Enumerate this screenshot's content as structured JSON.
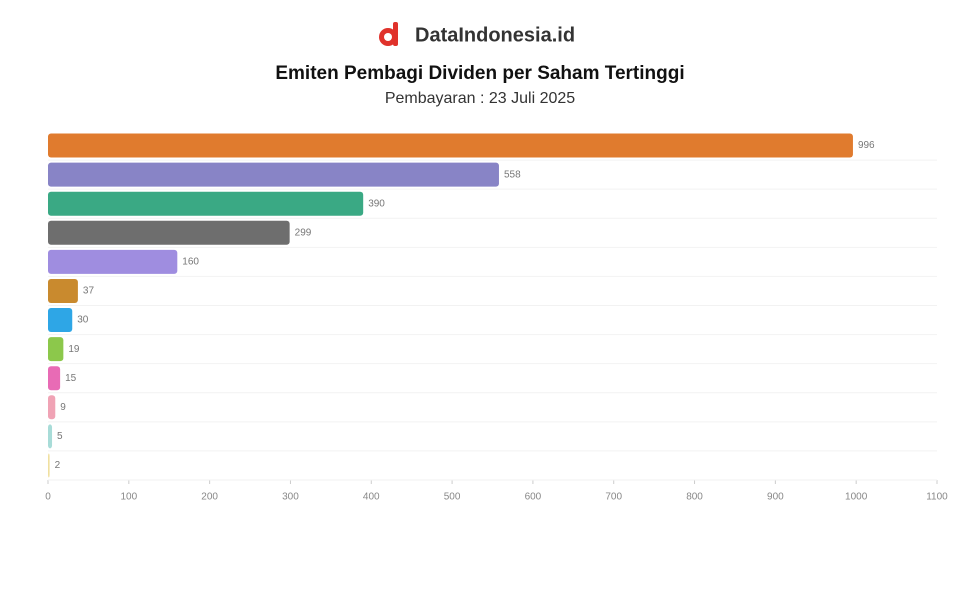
{
  "brand": "DataIndonesia.id",
  "chart_data": {
    "type": "hbar",
    "title": "Emiten Pembagi Dividen per Saham Tertinggi",
    "subtitle": "Pembayaran : 23 Juli 2025",
    "categories": [
      null,
      null,
      null,
      null,
      null,
      null,
      null,
      null,
      null,
      null,
      null,
      null
    ],
    "values": [
      996,
      558,
      390,
      299,
      160,
      37,
      30,
      19,
      15,
      9,
      5,
      2
    ],
    "colors": [
      "#e07b2e",
      "#8884c6",
      "#3aa984",
      "#6e6e6e",
      "#9f8de0",
      "#c98a2e",
      "#2ea6e6",
      "#8cc84b",
      "#e86bb5",
      "#f0a3b5",
      "#a8dcd8",
      "#f0e0a0"
    ],
    "xlim": [
      0,
      1100
    ],
    "xticks": [
      0,
      100,
      200,
      300,
      400,
      500,
      600,
      700,
      800,
      900,
      1000,
      1100
    ]
  }
}
